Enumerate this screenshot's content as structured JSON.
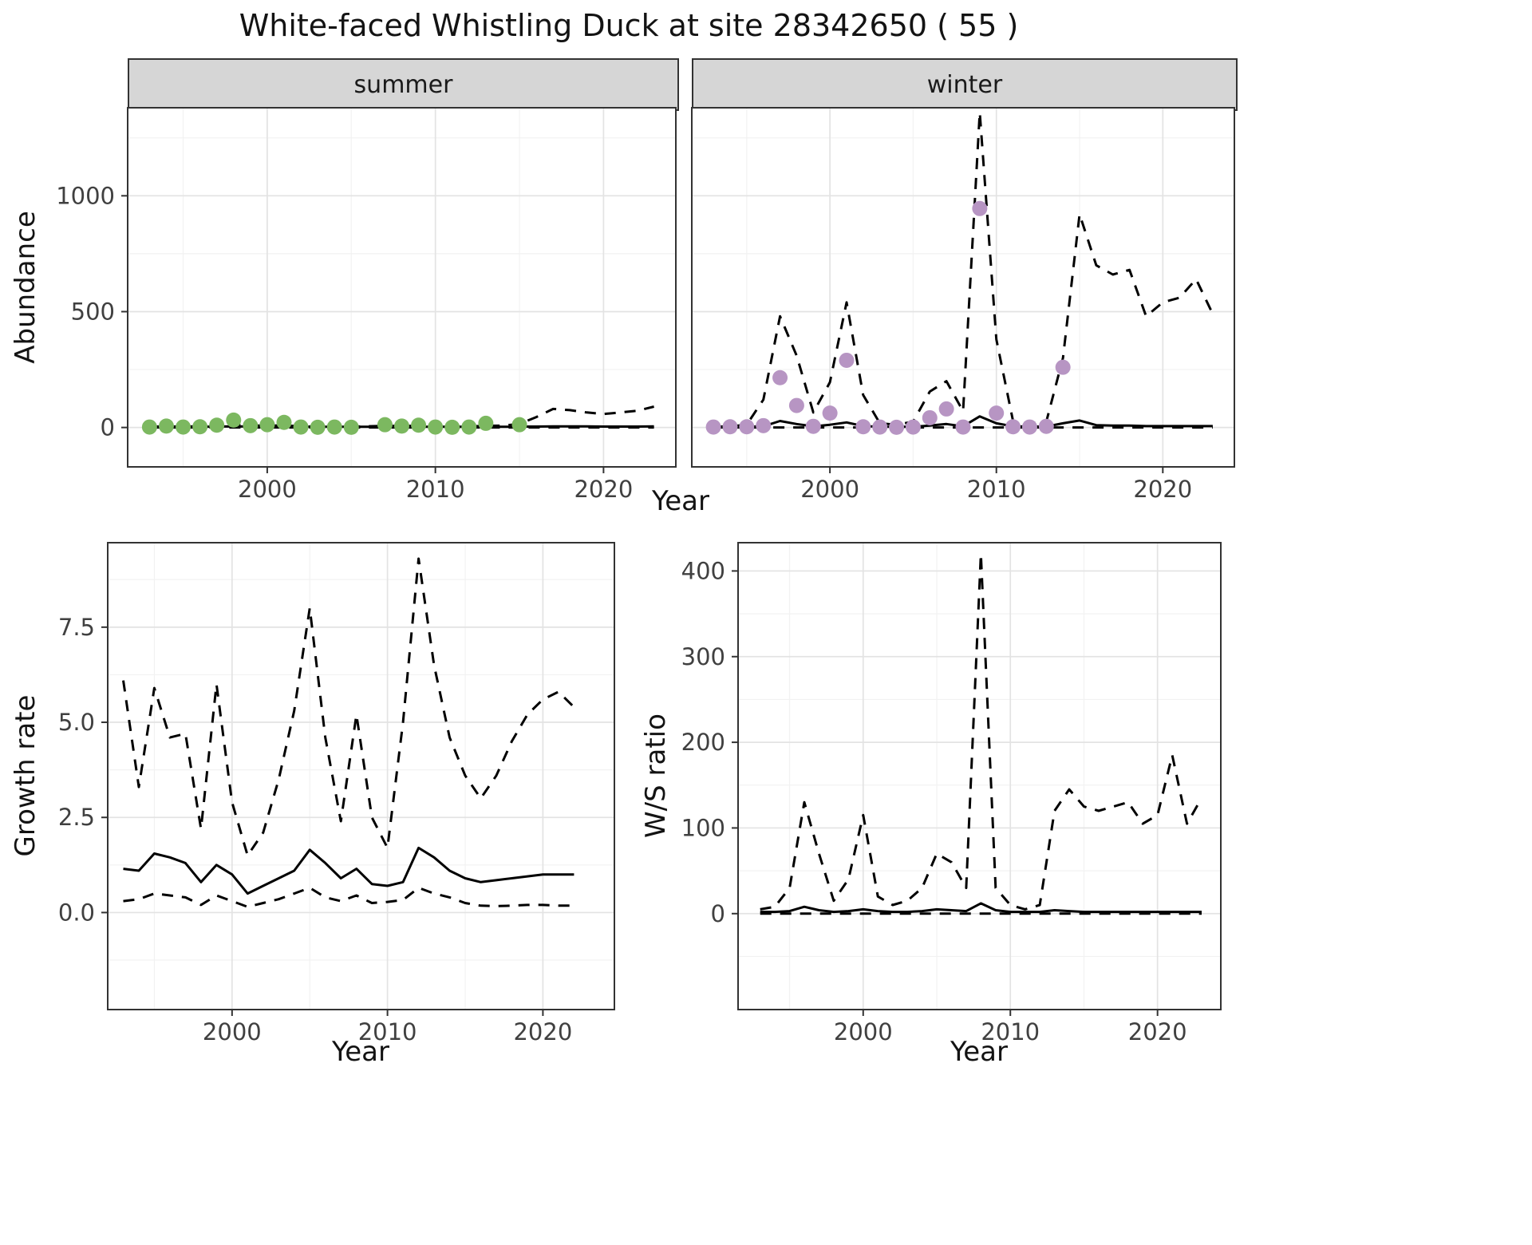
{
  "title": "White-faced Whistling Duck at site 28342650 ( 55 )",
  "colors": {
    "strip_bg": "#d6d6d6",
    "panel_border": "#333333",
    "grid_major": "#e3e3e3",
    "grid_minor": "#f2f2f2",
    "line": "#000000",
    "point_summer": "#7cb860",
    "point_winter": "#b795c3",
    "tick_text": "#404040"
  },
  "chart_data": [
    {
      "id": "abundance_summer",
      "type": "line",
      "facet": "summer",
      "xlabel": "Year",
      "ylabel": "Abundance",
      "xlim": [
        1991.7,
        2024.3
      ],
      "ylim": [
        -170,
        1380
      ],
      "xticks": [
        2000,
        2010,
        2020
      ],
      "xtick_labels": [
        "2000",
        "2010",
        "2020"
      ],
      "yticks": [
        0,
        500,
        1000
      ],
      "ytick_labels": [
        "0",
        "500",
        "1000"
      ],
      "grid": true,
      "legend": "none",
      "show_y_labels": true,
      "series": [
        {
          "name": "ci_lower",
          "type": "line",
          "dash": "dashed",
          "color": "#000000",
          "x": [
            1993,
            1994,
            1995,
            1996,
            1997,
            1998,
            1999,
            2000,
            2001,
            2002,
            2003,
            2004,
            2005,
            2006,
            2007,
            2008,
            2009,
            2010,
            2011,
            2012,
            2013,
            2014,
            2015,
            2016,
            2017,
            2018,
            2019,
            2020,
            2021,
            2022,
            2023
          ],
          "y": [
            0,
            0,
            0,
            0,
            0,
            0,
            0,
            0,
            0,
            0,
            0,
            0,
            0,
            0,
            0,
            0,
            0,
            0,
            0,
            0,
            0,
            0,
            0,
            0,
            0,
            0,
            0,
            0,
            0,
            0,
            0
          ]
        },
        {
          "name": "model_mean",
          "type": "line",
          "dash": "solid",
          "color": "#000000",
          "x": [
            1993,
            1994,
            1995,
            1996,
            1997,
            1998,
            1999,
            2000,
            2001,
            2002,
            2003,
            2004,
            2005,
            2006,
            2007,
            2008,
            2009,
            2010,
            2011,
            2012,
            2013,
            2014,
            2015,
            2016,
            2017,
            2018,
            2019,
            2020,
            2021,
            2022,
            2023
          ],
          "y": [
            3,
            3,
            3,
            3,
            4,
            5,
            4,
            4,
            4,
            3,
            3,
            3,
            3,
            3,
            3,
            3,
            3,
            3,
            3,
            3,
            3,
            3,
            4,
            4,
            5,
            5,
            5,
            4,
            4,
            4,
            5
          ]
        },
        {
          "name": "ci_upper",
          "type": "line",
          "dash": "dashed",
          "color": "#000000",
          "x": [
            1993,
            1994,
            1995,
            1996,
            1997,
            1998,
            1999,
            2000,
            2001,
            2002,
            2003,
            2004,
            2005,
            2006,
            2007,
            2008,
            2009,
            2010,
            2011,
            2012,
            2013,
            2014,
            2015,
            2016,
            2017,
            2018,
            2019,
            2020,
            2021,
            2022,
            2023
          ],
          "y": [
            4,
            4,
            4,
            5,
            8,
            12,
            8,
            8,
            9,
            5,
            4,
            4,
            4,
            5,
            7,
            7,
            7,
            5,
            4,
            5,
            7,
            8,
            15,
            45,
            80,
            75,
            65,
            58,
            65,
            72,
            90
          ]
        },
        {
          "name": "observed_counts",
          "type": "scatter",
          "color": "#7cb860",
          "x": [
            1993,
            1994,
            1995,
            1996,
            1997,
            1998,
            1999,
            2000,
            2001,
            2002,
            2003,
            2004,
            2005,
            2007,
            2008,
            2009,
            2010,
            2011,
            2012,
            2013,
            2015
          ],
          "y": [
            2,
            6,
            2,
            3,
            10,
            32,
            8,
            12,
            22,
            2,
            1,
            2,
            1,
            12,
            6,
            10,
            2,
            1,
            2,
            18,
            12
          ]
        }
      ]
    },
    {
      "id": "abundance_winter",
      "type": "line",
      "facet": "winter",
      "xlabel": "Year",
      "ylabel": "Abundance",
      "xlim": [
        1991.7,
        2024.3
      ],
      "ylim": [
        -170,
        1380
      ],
      "xticks": [
        2000,
        2010,
        2020
      ],
      "xtick_labels": [
        "2000",
        "2010",
        "2020"
      ],
      "yticks": [
        0,
        500,
        1000
      ],
      "ytick_labels": [
        "0",
        "500",
        "1000"
      ],
      "grid": true,
      "legend": "none",
      "show_y_labels": false,
      "series": [
        {
          "name": "ci_lower",
          "type": "line",
          "dash": "dashed",
          "color": "#000000",
          "x": [
            1993,
            1994,
            1995,
            1996,
            1997,
            1998,
            1999,
            2000,
            2001,
            2002,
            2003,
            2004,
            2005,
            2006,
            2007,
            2008,
            2009,
            2010,
            2011,
            2012,
            2013,
            2014,
            2015,
            2016,
            2017,
            2018,
            2019,
            2020,
            2021,
            2022,
            2023
          ],
          "y": [
            0,
            0,
            0,
            0,
            0,
            0,
            0,
            0,
            0,
            0,
            0,
            0,
            0,
            0,
            0,
            0,
            0,
            0,
            0,
            0,
            0,
            0,
            0,
            0,
            0,
            0,
            0,
            0,
            0,
            0,
            0
          ]
        },
        {
          "name": "model_mean",
          "type": "line",
          "dash": "solid",
          "color": "#000000",
          "x": [
            1993,
            1994,
            1995,
            1996,
            1997,
            1998,
            1999,
            2000,
            2001,
            2002,
            2003,
            2004,
            2005,
            2006,
            2007,
            2008,
            2009,
            2010,
            2011,
            2012,
            2013,
            2014,
            2015,
            2016,
            2017,
            2018,
            2019,
            2020,
            2021,
            2022,
            2023
          ],
          "y": [
            3,
            3,
            3,
            5,
            28,
            15,
            5,
            12,
            22,
            6,
            3,
            3,
            3,
            8,
            15,
            5,
            48,
            18,
            5,
            4,
            4,
            18,
            30,
            10,
            8,
            8,
            6,
            6,
            6,
            6,
            6
          ]
        },
        {
          "name": "ci_upper",
          "type": "line",
          "dash": "dashed",
          "color": "#000000",
          "x": [
            1993,
            1994,
            1995,
            1996,
            1997,
            1998,
            1999,
            2000,
            2001,
            2002,
            2003,
            2004,
            2005,
            2006,
            2007,
            2008,
            2009,
            2010,
            2011,
            2012,
            2013,
            2014,
            2015,
            2016,
            2017,
            2018,
            2019,
            2020,
            2021,
            2022,
            2023
          ],
          "y": [
            3,
            5,
            12,
            120,
            480,
            310,
            65,
            195,
            540,
            140,
            18,
            12,
            25,
            155,
            200,
            70,
            1360,
            380,
            28,
            18,
            25,
            300,
            920,
            700,
            660,
            680,
            480,
            540,
            560,
            640,
            490
          ]
        },
        {
          "name": "observed_counts",
          "type": "scatter",
          "color": "#b795c3",
          "x": [
            1993,
            1994,
            1995,
            1996,
            1997,
            1998,
            1999,
            2000,
            2001,
            2002,
            2003,
            2004,
            2005,
            2006,
            2007,
            2008,
            2009,
            2010,
            2011,
            2012,
            2013,
            2014
          ],
          "y": [
            2,
            3,
            3,
            8,
            215,
            95,
            5,
            62,
            290,
            3,
            2,
            1,
            2,
            42,
            80,
            2,
            945,
            62,
            3,
            2,
            5,
            260
          ]
        }
      ]
    },
    {
      "id": "growth_rate",
      "type": "line",
      "facet": "",
      "xlabel": "Year",
      "ylabel": "Growth rate",
      "xlim": [
        1992.0,
        2024.6
      ],
      "ylim": [
        -2.55,
        9.72
      ],
      "xticks": [
        2000,
        2010,
        2020
      ],
      "xtick_labels": [
        "2000",
        "2010",
        "2020"
      ],
      "yticks": [
        0,
        2.5,
        5,
        7.5
      ],
      "ytick_labels": [
        "0.0",
        "2.5",
        "5.0",
        "7.5"
      ],
      "grid": true,
      "legend": "none",
      "show_y_labels": true,
      "series": [
        {
          "name": "ci_lower",
          "type": "line",
          "dash": "dashed",
          "color": "#000000",
          "x": [
            1993,
            1994,
            1995,
            1996,
            1997,
            1998,
            1999,
            2000,
            2001,
            2002,
            2003,
            2004,
            2005,
            2006,
            2007,
            2008,
            2009,
            2010,
            2011,
            2012,
            2013,
            2014,
            2015,
            2016,
            2017,
            2018,
            2019,
            2020,
            2021,
            2022
          ],
          "y": [
            0.3,
            0.35,
            0.5,
            0.45,
            0.4,
            0.2,
            0.45,
            0.3,
            0.15,
            0.25,
            0.35,
            0.5,
            0.65,
            0.4,
            0.3,
            0.45,
            0.25,
            0.28,
            0.33,
            0.65,
            0.5,
            0.4,
            0.25,
            0.18,
            0.17,
            0.18,
            0.2,
            0.2,
            0.18,
            0.18
          ]
        },
        {
          "name": "model_mean",
          "type": "line",
          "dash": "solid",
          "color": "#000000",
          "x": [
            1993,
            1994,
            1995,
            1996,
            1997,
            1998,
            1999,
            2000,
            2001,
            2002,
            2003,
            2004,
            2005,
            2006,
            2007,
            2008,
            2009,
            2010,
            2011,
            2012,
            2013,
            2014,
            2015,
            2016,
            2017,
            2018,
            2019,
            2020,
            2021,
            2022
          ],
          "y": [
            1.15,
            1.1,
            1.55,
            1.45,
            1.3,
            0.8,
            1.25,
            1.0,
            0.5,
            0.7,
            0.9,
            1.1,
            1.65,
            1.3,
            0.9,
            1.15,
            0.75,
            0.7,
            0.8,
            1.7,
            1.45,
            1.1,
            0.9,
            0.8,
            0.85,
            0.9,
            0.95,
            1.0,
            1.0,
            1.0
          ]
        },
        {
          "name": "ci_upper",
          "type": "line",
          "dash": "dashed",
          "color": "#000000",
          "x": [
            1993,
            1994,
            1995,
            1996,
            1997,
            1998,
            1999,
            2000,
            2001,
            2002,
            2003,
            2004,
            2005,
            2006,
            2007,
            2008,
            2009,
            2010,
            2011,
            2012,
            2013,
            2014,
            2015,
            2016,
            2017,
            2018,
            2019,
            2020,
            2021,
            2022
          ],
          "y": [
            6.1,
            3.3,
            5.9,
            4.6,
            4.7,
            2.2,
            6.0,
            2.9,
            1.5,
            2.1,
            3.5,
            5.3,
            8.0,
            4.6,
            2.4,
            5.2,
            2.5,
            1.7,
            5.0,
            9.3,
            6.5,
            4.6,
            3.6,
            3.0,
            3.6,
            4.5,
            5.2,
            5.6,
            5.8,
            5.4
          ]
        }
      ]
    },
    {
      "id": "ws_ratio",
      "type": "line",
      "facet": "",
      "xlabel": "Year",
      "ylabel": "W/S ratio",
      "xlim": [
        1991.5,
        2024.3
      ],
      "ylim": [
        -112,
        433
      ],
      "xticks": [
        2000,
        2010,
        2020
      ],
      "xtick_labels": [
        "2000",
        "2010",
        "2020"
      ],
      "yticks": [
        0,
        100,
        200,
        300,
        400
      ],
      "ytick_labels": [
        "0",
        "100",
        "200",
        "300",
        "400"
      ],
      "grid": true,
      "legend": "none",
      "show_y_labels": true,
      "series": [
        {
          "name": "ci_lower",
          "type": "line",
          "dash": "dashed",
          "color": "#000000",
          "x": [
            1993,
            1994,
            1995,
            1996,
            1997,
            1998,
            1999,
            2000,
            2001,
            2002,
            2003,
            2004,
            2005,
            2006,
            2007,
            2008,
            2009,
            2010,
            2011,
            2012,
            2013,
            2014,
            2015,
            2016,
            2017,
            2018,
            2019,
            2020,
            2021,
            2022,
            2023
          ],
          "y": [
            0,
            0,
            0,
            0,
            0,
            0,
            0,
            0,
            0,
            0,
            0,
            0,
            0,
            0,
            0,
            0,
            0,
            0,
            0,
            0,
            0,
            0,
            0,
            0,
            0,
            0,
            0,
            0,
            0,
            0,
            0
          ]
        },
        {
          "name": "model_mean",
          "type": "line",
          "dash": "solid",
          "color": "#000000",
          "x": [
            1993,
            1994,
            1995,
            1996,
            1997,
            1998,
            1999,
            2000,
            2001,
            2002,
            2003,
            2004,
            2005,
            2006,
            2007,
            2008,
            2009,
            2010,
            2011,
            2012,
            2013,
            2014,
            2015,
            2016,
            2017,
            2018,
            2019,
            2020,
            2021,
            2022,
            2023
          ],
          "y": [
            2,
            2,
            3,
            8,
            4,
            2,
            3,
            5,
            3,
            2,
            2,
            3,
            5,
            4,
            3,
            12,
            4,
            2,
            2,
            2,
            4,
            3,
            2,
            2,
            2,
            2,
            2,
            2,
            2,
            2,
            2
          ]
        },
        {
          "name": "ci_upper",
          "type": "line",
          "dash": "dashed",
          "color": "#000000",
          "x": [
            1993,
            1994,
            1995,
            1996,
            1997,
            1998,
            1999,
            2000,
            2001,
            2002,
            2003,
            2004,
            2005,
            2006,
            2007,
            2008,
            2009,
            2010,
            2011,
            2012,
            2013,
            2014,
            2015,
            2016,
            2017,
            2018,
            2019,
            2020,
            2021,
            2022,
            2023
          ],
          "y": [
            5,
            8,
            30,
            130,
            70,
            15,
            40,
            115,
            20,
            10,
            15,
            30,
            70,
            60,
            30,
            420,
            30,
            10,
            5,
            10,
            120,
            145,
            125,
            120,
            125,
            130,
            105,
            115,
            185,
            105,
            135
          ]
        }
      ]
    }
  ]
}
